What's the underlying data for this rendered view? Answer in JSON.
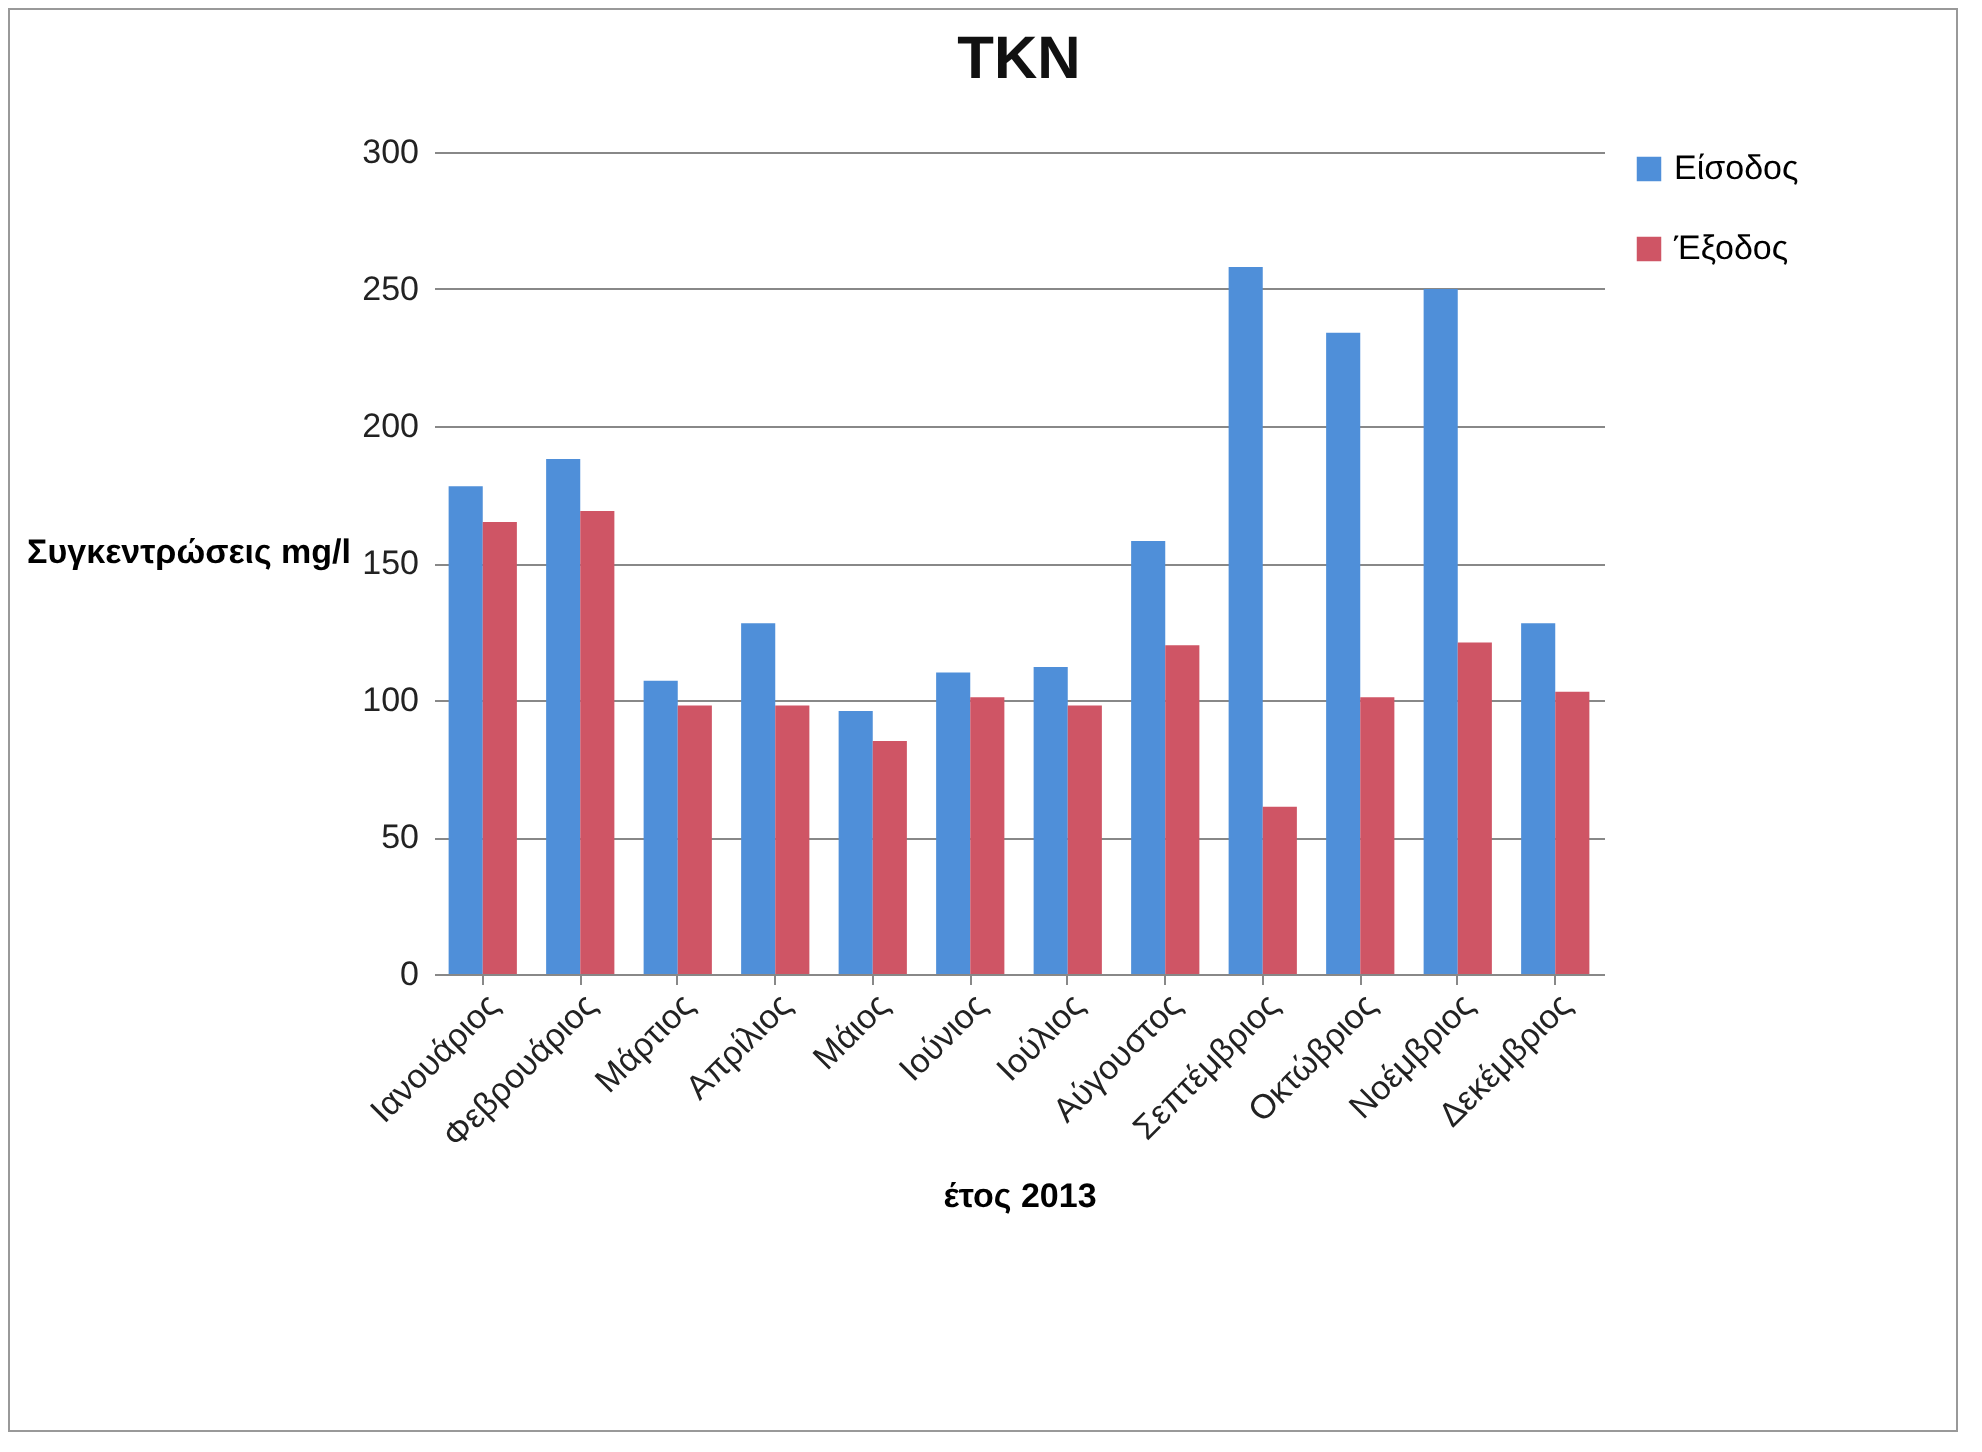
{
  "chart_data": {
    "type": "bar",
    "title": "TKN",
    "xlabel": "έτος 2013",
    "ylabel": "Συγκεντρώσεις mg/l",
    "categories": [
      "Ιανουάριος",
      "Φεβρουάριος",
      "Μάρτιος",
      "Απρίλιος",
      "Μάιος",
      "Ιούνιος",
      "Ιούλιος",
      "Αύγουστος",
      "Σεπτέμβριος",
      "Οκτώβριος",
      "Νοέμβριος",
      "Δεκέμβριος"
    ],
    "series": [
      {
        "name": "Είσοδος",
        "color": "#4f8fd9",
        "values": [
          178,
          188,
          107,
          128,
          96,
          110,
          112,
          158,
          258,
          234,
          250,
          128
        ]
      },
      {
        "name": "Έξοδος",
        "color": "#cf5565",
        "values": [
          165,
          169,
          98,
          98,
          85,
          101,
          98,
          120,
          61,
          101,
          121,
          103
        ]
      }
    ],
    "ylim": [
      0,
      300
    ],
    "yticks": [
      0,
      50,
      100,
      150,
      200,
      250,
      300
    ],
    "grid": "y",
    "legend": "right"
  }
}
